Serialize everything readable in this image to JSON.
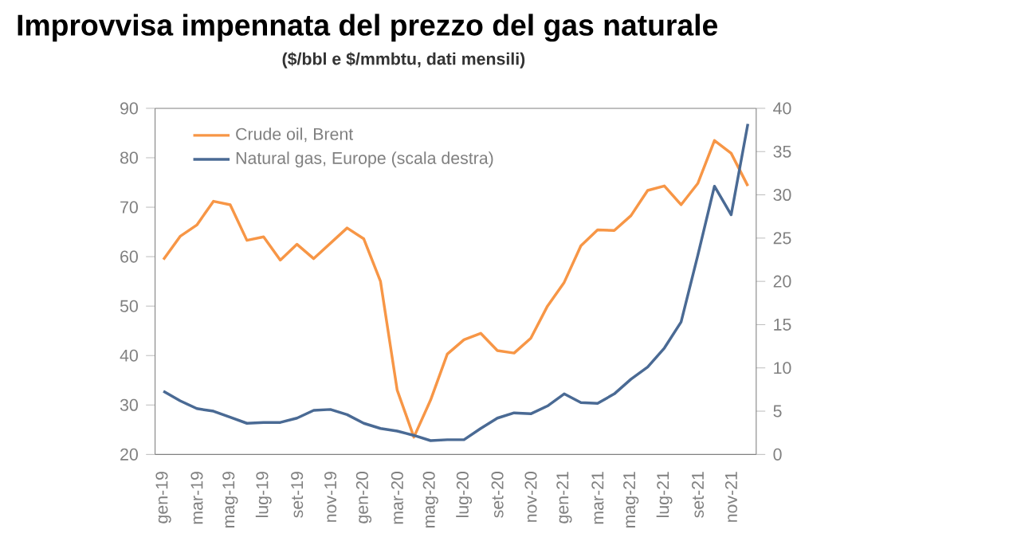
{
  "chart_data": {
    "type": "line",
    "title": "Improvvisa impennata del prezzo del gas naturale",
    "subtitle": "($/bbl e $/mmbtu, dati mensili)",
    "categories": [
      "gen-19",
      null,
      "mar-19",
      null,
      "mag-19",
      null,
      "lug-19",
      null,
      "set-19",
      null,
      "nov-19",
      null,
      "gen-20",
      null,
      "mar-20",
      null,
      "mag-20",
      null,
      "lug-20",
      null,
      "set-20",
      null,
      "nov-20",
      null,
      "gen-21",
      null,
      "mar-21",
      null,
      "mag-21",
      null,
      "lug-21",
      null,
      "set-21",
      null,
      "nov-21",
      null
    ],
    "series": [
      {
        "name": "Crude oil, Brent",
        "color": "#f79646",
        "values": [
          59.4,
          64.1,
          66.4,
          71.2,
          70.5,
          63.3,
          64,
          59.3,
          62.5,
          59.6,
          62.7,
          65.8,
          63.6,
          55,
          33,
          23.5,
          31,
          40.3,
          43.2,
          44.5,
          41,
          40.5,
          43.5,
          50,
          54.8,
          62.2,
          65.4,
          65.3,
          68.3,
          73.4,
          74.3,
          70.5,
          74.8,
          83.5,
          80.9,
          74.3
        ]
      },
      {
        "name": "Natural gas, Europe (scala destra)",
        "color": "#4a6a94",
        "axis": "y2",
        "values": [
          7.3,
          6.2,
          5.3,
          5.0,
          4.3,
          3.6,
          3.7,
          3.7,
          4.2,
          5.1,
          5.2,
          4.6,
          3.6,
          3.0,
          2.7,
          2.2,
          1.6,
          1.7,
          1.7,
          3.0,
          4.2,
          4.8,
          4.7,
          5.6,
          7.0,
          6.0,
          5.9,
          7.0,
          8.7,
          10.1,
          12.3,
          15.3,
          23.0,
          31.0,
          27.7,
          38.2
        ]
      }
    ],
    "ylim": [
      20,
      90
    ],
    "yticks": [
      20,
      30,
      40,
      50,
      60,
      70,
      80,
      90
    ],
    "y2lim": [
      0,
      40
    ],
    "y2ticks": [
      0,
      5,
      10,
      15,
      20,
      25,
      30,
      35,
      40
    ],
    "legend": "top left",
    "grid": false
  }
}
